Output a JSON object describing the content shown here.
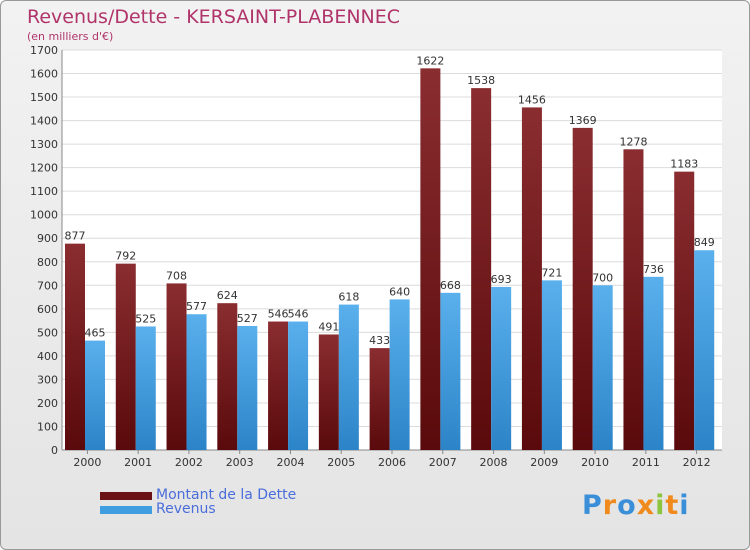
{
  "title": "Revenus/Dette - KERSAINT-PLABENNEC",
  "subtitle": "(en milliers d'€)",
  "legend": [
    {
      "label": "Montant de la Dette",
      "color": "#6b1215"
    },
    {
      "label": "Revenus",
      "color": "#3f9de0"
    }
  ],
  "logo": {
    "letters": [
      {
        "ch": "P",
        "color": "#3a8fd8"
      },
      {
        "ch": "r",
        "color": "#f08a1c"
      },
      {
        "ch": "o",
        "color": "#3a8fd8"
      },
      {
        "ch": "x",
        "color": "#f08a1c"
      },
      {
        "ch": "i",
        "color": "#8cc63f"
      },
      {
        "ch": "t",
        "color": "#f08a1c"
      },
      {
        "ch": "i",
        "color": "#3a8fd8"
      }
    ]
  },
  "chart_data": {
    "type": "bar",
    "categories": [
      "2000",
      "2001",
      "2002",
      "2003",
      "2004",
      "2005",
      "2006",
      "2007",
      "2008",
      "2009",
      "2010",
      "2011",
      "2012"
    ],
    "series": [
      {
        "name": "Montant de la Dette",
        "color": "#6b1215",
        "values": [
          877,
          792,
          708,
          624,
          546,
          491,
          433,
          1622,
          1538,
          1456,
          1369,
          1278,
          1183
        ]
      },
      {
        "name": "Revenus",
        "color": "#3f9de0",
        "values": [
          465,
          525,
          577,
          527,
          546,
          618,
          640,
          668,
          693,
          721,
          700,
          736,
          849
        ]
      }
    ],
    "yticks": [
      0,
      100,
      200,
      300,
      400,
      500,
      600,
      700,
      800,
      900,
      1000,
      1100,
      1200,
      1300,
      1400,
      1500,
      1600,
      1700
    ],
    "ylim": [
      0,
      1700
    ],
    "grid": true,
    "legend_position": "bottom-left"
  }
}
